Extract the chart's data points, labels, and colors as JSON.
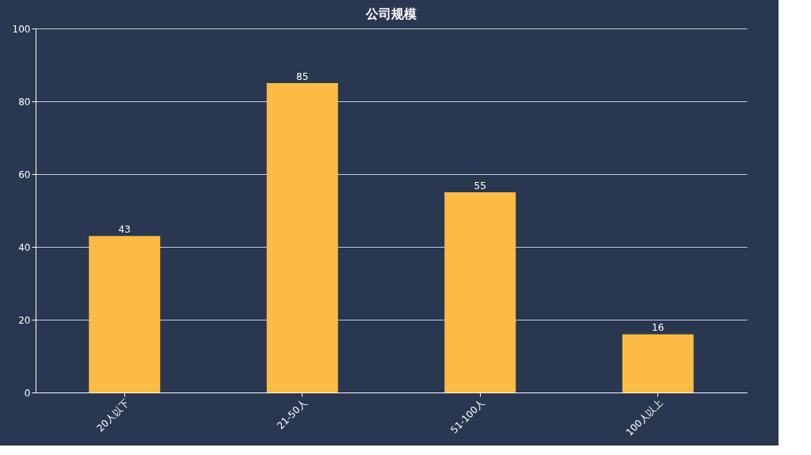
{
  "chart_data": {
    "type": "bar",
    "title": "公司规模",
    "categories": [
      "20人以下",
      "21-50人",
      "51-100人",
      "100人以上"
    ],
    "values": [
      43,
      85,
      55,
      16
    ],
    "color": "#fbbb44",
    "ylim": [
      0,
      100
    ],
    "yticks": [
      0,
      20,
      40,
      60,
      80,
      100
    ],
    "grid": "y",
    "data_labels": true
  }
}
